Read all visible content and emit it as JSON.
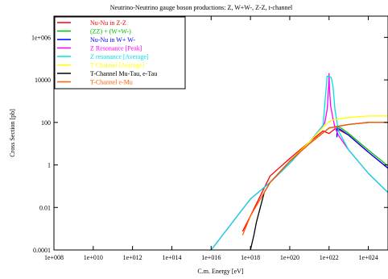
{
  "chart_data": {
    "type": "line",
    "title": "Neutrino-Neutrino gauge boson productions: Z, W+W-, Z-Z, t-channel",
    "xlabel": "C.m. Energy [eV]",
    "ylabel": "Cross Section [pb]",
    "xscale": "log",
    "yscale": "log",
    "xlim": [
      100000000.0,
      1e+25
    ],
    "ylim": [
      0.0001,
      10000000.0
    ],
    "x_ticks": [
      {
        "value": 100000000.0,
        "label": "1e+008"
      },
      {
        "value": 10000000000.0,
        "label": "1e+010"
      },
      {
        "value": 1000000000000.0,
        "label": "1e+012"
      },
      {
        "value": 100000000000000.0,
        "label": "1e+014"
      },
      {
        "value": 1e+16,
        "label": "1e+016"
      },
      {
        "value": 1e+18,
        "label": "1e+018"
      },
      {
        "value": 1e+20,
        "label": "1e+020"
      },
      {
        "value": 1e+22,
        "label": "1e+022"
      },
      {
        "value": 1e+24,
        "label": "1e+024"
      }
    ],
    "y_ticks": [
      {
        "value": 0.0001,
        "label": "0.0001"
      },
      {
        "value": 0.01,
        "label": "0.01"
      },
      {
        "value": 1,
        "label": "1"
      },
      {
        "value": 100,
        "label": "100"
      },
      {
        "value": 10000,
        "label": "10000"
      },
      {
        "value": 1000000,
        "label": "1e+006"
      }
    ],
    "legend_position": "top-left",
    "grid": false,
    "series": [
      {
        "name": "Nu-Nu in Z-Z",
        "color": "#ff0000",
        "x": [
          4e+17,
          1e+18,
          1e+19,
          1e+20,
          1e+21,
          5e+21,
          1e+22,
          2e+22,
          4e+22,
          1e+23,
          1e+24,
          1e+25
        ],
        "y": [
          0.00075,
          0.004,
          0.3,
          2.0,
          12,
          40,
          30,
          50,
          40,
          25,
          4,
          0.7
        ]
      },
      {
        "name": "(ZZ) + (W+W-)",
        "color": "#00c000",
        "x": [
          2.5e+22,
          2.6e+22,
          4e+22,
          1e+23,
          1e+24,
          1e+25
        ],
        "y": [
          25,
          65,
          55,
          30,
          5,
          0.9
        ]
      },
      {
        "name": "Nu-Nu in W+ W-",
        "color": "#0000ff",
        "x": [
          2.5e+22,
          2.6e+22,
          4e+22,
          1e+23,
          1e+24,
          1e+25
        ],
        "y": [
          20,
          55,
          45,
          25,
          4,
          0.7
        ]
      },
      {
        "name": "Z Resonance [Peak]",
        "color": "#ff00ff",
        "x": [
          1e+16,
          1e+18,
          1e+19,
          1e+20,
          1e+21,
          6e+21,
          8e+21,
          9.5e+21,
          1e+22,
          1.05e+22,
          1.2e+22,
          1.6e+22,
          2e+22,
          3e+22,
          1e+23,
          1e+24,
          1e+25
        ],
        "y": [
          0.0001,
          0.025,
          0.15,
          1.2,
          12,
          90,
          400,
          5000,
          20000,
          4000,
          600,
          150,
          60,
          25,
          5,
          0.4,
          0.05
        ]
      },
      {
        "name": " Z resonance [Average]",
        "color": "#00e0e0",
        "x": [
          1e+16,
          1e+18,
          1e+19,
          1e+20,
          1e+21,
          5e+21,
          6.5e+21,
          8e+21,
          1.3e+22,
          1.6e+22,
          2e+22,
          3e+22,
          1e+23,
          1e+24,
          1e+25
        ],
        "y": [
          0.0001,
          0.025,
          0.15,
          1.2,
          12,
          70,
          1500,
          15000,
          13000,
          5000,
          400,
          40,
          5,
          0.4,
          0.05
        ]
      },
      {
        "name": "T Channel [Average]",
        "color": "#ffff00",
        "x": [
          1e+20,
          1e+21,
          5e+21,
          1e+22,
          2e+22,
          1e+23,
          1e+24,
          1e+25
        ],
        "y": [
          1.5,
          12,
          60,
          110,
          140,
          170,
          200,
          200
        ]
      },
      {
        "name": "T-Channel Mu-Tau, e-Tau",
        "color": "#000000",
        "x": [
          1e+18,
          1.5e+18,
          2e+18,
          5e+18,
          1e+19,
          1e+20,
          1e+21,
          1e+22,
          1e+23,
          1e+24,
          1e+25
        ],
        "y": [
          0.0001,
          0.0005,
          0.002,
          0.05,
          0.15,
          1.5,
          10,
          55,
          80,
          100,
          100
        ]
      },
      {
        "name": "T-Channel e-Mu",
        "color": "#ff6000",
        "x": [
          4e+17,
          1e+18,
          1e+19,
          1e+20,
          1e+21,
          1e+22,
          1e+23,
          1e+24,
          1e+25
        ],
        "y": [
          0.0005,
          0.004,
          0.15,
          1.5,
          10,
          55,
          80,
          100,
          100
        ]
      }
    ]
  }
}
